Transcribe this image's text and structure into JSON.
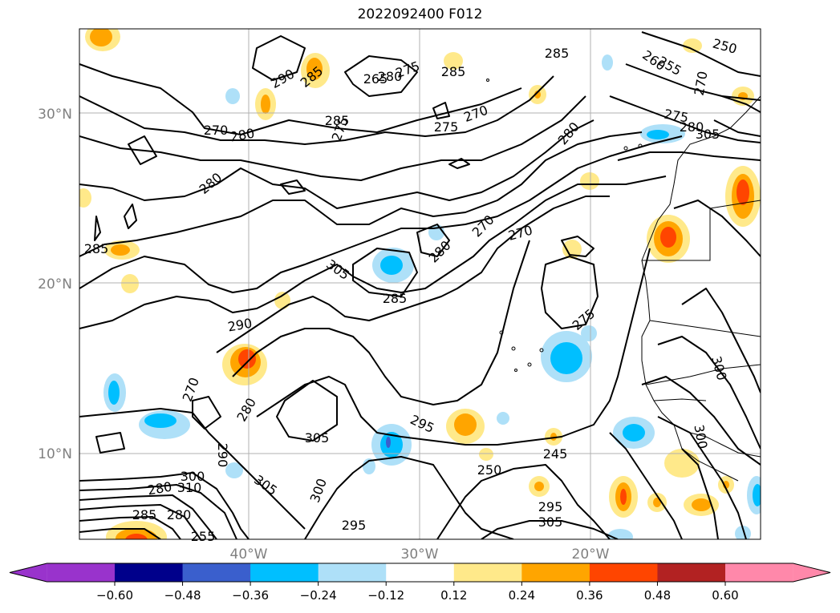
{
  "title": "2022092400 F012",
  "map": {
    "lat_labels": [
      "30°N",
      "20°N",
      "10°N"
    ],
    "lon_labels": [
      "40°W",
      "30°W",
      "20°W"
    ],
    "gridlines": true,
    "axis_label_color": "#808080",
    "contour_labels": [
      "290",
      "285",
      "265",
      "280",
      "275",
      "285",
      "285",
      "250",
      "255",
      "260",
      "270",
      "275",
      "280",
      "280",
      "270",
      "275",
      "270",
      "280",
      "285",
      "280",
      "275",
      "270",
      "280",
      "270",
      "305",
      "285",
      "275",
      "270",
      "280",
      "305",
      "290",
      "295",
      "305",
      "300",
      "295",
      "290",
      "285",
      "280",
      "255",
      "250",
      "245",
      "295",
      "305",
      "300",
      "305",
      "300",
      "285",
      "310",
      "300",
      "280"
    ]
  },
  "colorbar": {
    "ticks": [
      "−0.60",
      "−0.48",
      "−0.36",
      "−0.24",
      "−0.12",
      "0.12",
      "0.24",
      "0.36",
      "0.48",
      "0.60"
    ],
    "colors": [
      "#9933cc",
      "#00008b",
      "#3a5fcd",
      "#00bfff",
      "#aee0f8",
      "#ffffff",
      "#ffe98a",
      "#ffa500",
      "#ff4500",
      "#b22222",
      "#ff88aa"
    ],
    "extend": "both"
  }
}
